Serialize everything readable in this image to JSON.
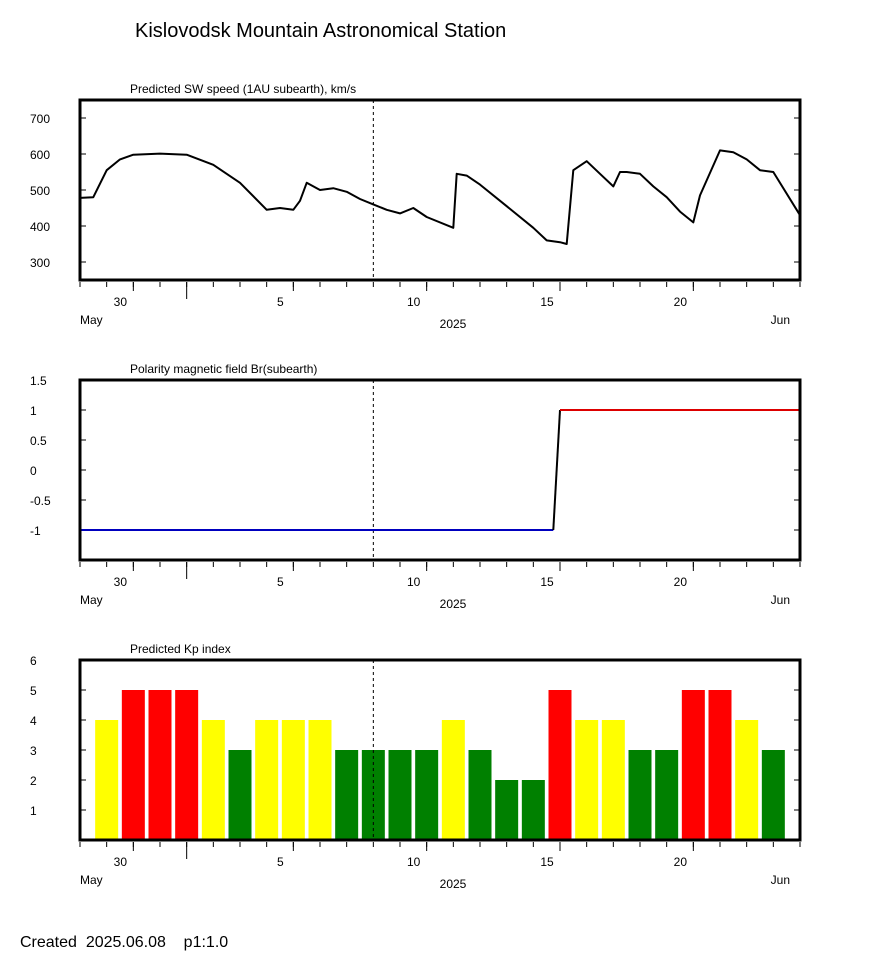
{
  "title": "Kislovodsk Mountain Astronomical Station",
  "footer": "Created  2025.06.08    p1:1.0",
  "x_axis": {
    "ticks": [
      "30",
      "5",
      "10",
      "15",
      "20"
    ],
    "month_start": "May",
    "month_end": "Jun",
    "year": "2025",
    "now_marker": "2025-06-08"
  },
  "chart_data": [
    {
      "type": "line",
      "title": "Predicted SW speed (1AU subearth), km/s",
      "yticks": [
        "700",
        "600",
        "500",
        "400",
        "300"
      ],
      "ylim": [
        250,
        750
      ],
      "xlim": [
        "2025-05-28",
        "2025-06-24"
      ],
      "series": [
        {
          "color": "#000000",
          "x": [
            "2025-05-28",
            "2025-05-28 12:00",
            "2025-05-29",
            "2025-05-29 12:00",
            "2025-05-30",
            "2025-05-31",
            "2025-06-01",
            "2025-06-02",
            "2025-06-03",
            "2025-06-04",
            "2025-06-04 12:00",
            "2025-06-05",
            "2025-06-05 06:00",
            "2025-06-05 12:00",
            "2025-06-06",
            "2025-06-06 12:00",
            "2025-06-07",
            "2025-06-07 12:00",
            "2025-06-08",
            "2025-06-08 12:00",
            "2025-06-09",
            "2025-06-09 12:00",
            "2025-06-10",
            "2025-06-11",
            "2025-06-11 03:00",
            "2025-06-11 12:00",
            "2025-06-12",
            "2025-06-13",
            "2025-06-14",
            "2025-06-14 12:00",
            "2025-06-15",
            "2025-06-15 06:00",
            "2025-06-15 12:00",
            "2025-06-16",
            "2025-06-16 12:00",
            "2025-06-17",
            "2025-06-17 06:00",
            "2025-06-17 12:00",
            "2025-06-18",
            "2025-06-18 12:00",
            "2025-06-19",
            "2025-06-19 12:00",
            "2025-06-20",
            "2025-06-20 06:00",
            "2025-06-21",
            "2025-06-21 12:00",
            "2025-06-22",
            "2025-06-22 12:00",
            "2025-06-23",
            "2025-06-24"
          ],
          "values": [
            478,
            480,
            555,
            585,
            598,
            601,
            598,
            570,
            520,
            445,
            450,
            445,
            470,
            520,
            500,
            505,
            495,
            475,
            460,
            445,
            435,
            450,
            425,
            395,
            545,
            540,
            515,
            455,
            395,
            360,
            355,
            350,
            555,
            580,
            545,
            510,
            550,
            550,
            545,
            510,
            480,
            440,
            410,
            485,
            610,
            605,
            585,
            555,
            550,
            430
          ]
        }
      ]
    },
    {
      "type": "line",
      "title": "Polarity magnetic field  Br(subearth)",
      "yticks": [
        "1.5",
        "1",
        "0.5",
        "0",
        "-0.5",
        "-1"
      ],
      "ylim": [
        -1.5,
        1.5
      ],
      "xlim": [
        "2025-05-28",
        "2025-06-24"
      ],
      "series": [
        {
          "color": "#0000bf",
          "x": [
            "2025-05-28",
            "2025-06-14 18:00"
          ],
          "values": [
            -1,
            -1
          ]
        },
        {
          "color": "#000000",
          "x": [
            "2025-06-14 18:00",
            "2025-06-15"
          ],
          "values": [
            -1,
            1
          ]
        },
        {
          "color": "#dd0000",
          "x": [
            "2025-06-15",
            "2025-06-24"
          ],
          "values": [
            1,
            1
          ]
        }
      ]
    },
    {
      "type": "bar",
      "title": "Predicted Kp index",
      "yticks": [
        "6",
        "5",
        "4",
        "3",
        "2",
        "1"
      ],
      "ylim": [
        0,
        6
      ],
      "xlim": [
        "2025-05-28",
        "2025-06-24"
      ],
      "categories": [
        "2025-05-29",
        "2025-05-30",
        "2025-05-31",
        "2025-06-01",
        "2025-06-02",
        "2025-06-03",
        "2025-06-04",
        "2025-06-05",
        "2025-06-06",
        "2025-06-07",
        "2025-06-08",
        "2025-06-09",
        "2025-06-10",
        "2025-06-11",
        "2025-06-12",
        "2025-06-13",
        "2025-06-14",
        "2025-06-15",
        "2025-06-16",
        "2025-06-17",
        "2025-06-18",
        "2025-06-19",
        "2025-06-20",
        "2025-06-21",
        "2025-06-22",
        "2025-06-23"
      ],
      "values": [
        4,
        5,
        5,
        5,
        4,
        3,
        4,
        4,
        4,
        3,
        3,
        3,
        3,
        4,
        3,
        2,
        2,
        5,
        4,
        4,
        3,
        3,
        5,
        5,
        4,
        3
      ],
      "colors": {
        "low": "#008000",
        "mid": "#ffff00",
        "high": "#ff0000"
      }
    }
  ]
}
